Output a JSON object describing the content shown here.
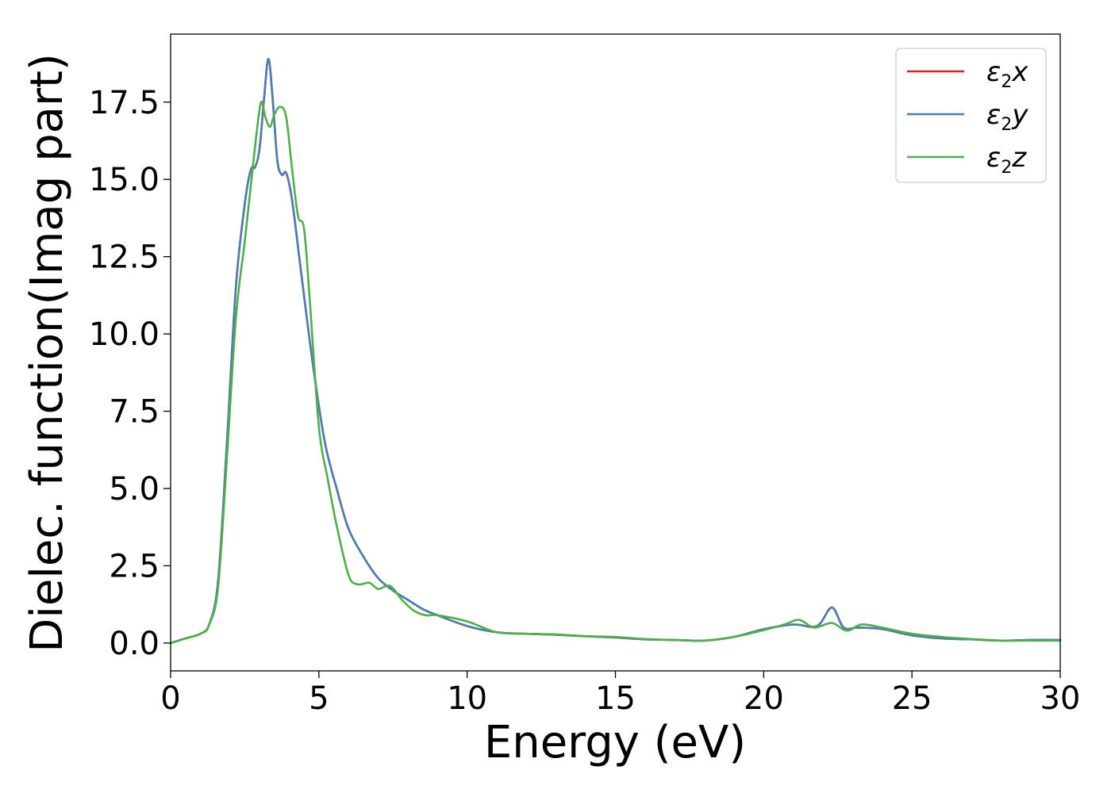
{
  "chart_data": {
    "type": "line",
    "xlabel": "Energy (eV)",
    "ylabel": "Dielec. function(Imag part)",
    "xlim": [
      0,
      30
    ],
    "ylim": [
      -0.9,
      19.7
    ],
    "xticks": [
      0,
      5,
      10,
      15,
      20,
      25,
      30
    ],
    "xtick_labels": [
      "0",
      "5",
      "10",
      "15",
      "20",
      "25",
      "30"
    ],
    "yticks": [
      0,
      2.5,
      5,
      7.5,
      10,
      12.5,
      15,
      17.5
    ],
    "ytick_labels": [
      "0.0",
      "2.5",
      "5.0",
      "7.5",
      "10.0",
      "12.5",
      "15.0",
      "17.5"
    ],
    "grid": false,
    "legend_position": "top-right",
    "series": [
      {
        "name": "ε2x",
        "legend_base": "ε",
        "legend_sub": "2",
        "legend_var": "x",
        "color": "#e41a1c",
        "x": [
          0,
          0.5,
          1.0,
          1.3,
          1.6,
          1.9,
          2.2,
          2.5,
          2.7,
          2.85,
          3.0,
          3.15,
          3.3,
          3.45,
          3.6,
          3.75,
          3.9,
          4.1,
          4.4,
          4.8,
          5.2,
          5.6,
          6.0,
          6.5,
          7.0,
          7.5,
          8.0,
          8.5,
          9.0,
          10.0,
          11.0,
          12.0,
          13.0,
          14.0,
          15.0,
          16.0,
          17.0,
          18.0,
          19.0,
          20.0,
          21.0,
          21.8,
          22.3,
          22.7,
          23.2,
          24.0,
          25.0,
          26.0,
          27.0,
          28.0,
          29.0,
          30.0
        ],
        "y": [
          0.0,
          0.15,
          0.3,
          0.6,
          2.0,
          6.5,
          11.5,
          14.2,
          15.3,
          15.4,
          16.0,
          17.6,
          18.9,
          17.5,
          15.6,
          15.15,
          15.2,
          14.3,
          12.0,
          9.0,
          6.5,
          5.0,
          3.7,
          2.8,
          2.1,
          1.7,
          1.4,
          1.1,
          0.9,
          0.55,
          0.35,
          0.3,
          0.27,
          0.22,
          0.18,
          0.12,
          0.1,
          0.08,
          0.2,
          0.45,
          0.6,
          0.55,
          1.15,
          0.5,
          0.5,
          0.45,
          0.25,
          0.15,
          0.12,
          0.08,
          0.1,
          0.1
        ]
      },
      {
        "name": "ε2y",
        "legend_base": "ε",
        "legend_sub": "2",
        "legend_var": "y",
        "color": "#4a7fb5",
        "x": [
          0,
          0.5,
          1.0,
          1.3,
          1.6,
          1.9,
          2.2,
          2.5,
          2.7,
          2.85,
          3.0,
          3.15,
          3.3,
          3.45,
          3.6,
          3.75,
          3.9,
          4.1,
          4.4,
          4.8,
          5.2,
          5.6,
          6.0,
          6.5,
          7.0,
          7.5,
          8.0,
          8.5,
          9.0,
          10.0,
          11.0,
          12.0,
          13.0,
          14.0,
          15.0,
          16.0,
          17.0,
          18.0,
          19.0,
          20.0,
          21.0,
          21.8,
          22.3,
          22.7,
          23.2,
          24.0,
          25.0,
          26.0,
          27.0,
          28.0,
          29.0,
          30.0
        ],
        "y": [
          0.0,
          0.15,
          0.3,
          0.6,
          2.0,
          6.5,
          11.5,
          14.2,
          15.3,
          15.4,
          16.0,
          17.6,
          18.9,
          17.5,
          15.6,
          15.15,
          15.2,
          14.3,
          12.0,
          9.0,
          6.5,
          5.0,
          3.7,
          2.8,
          2.1,
          1.7,
          1.4,
          1.1,
          0.9,
          0.55,
          0.35,
          0.3,
          0.27,
          0.22,
          0.18,
          0.12,
          0.1,
          0.08,
          0.2,
          0.45,
          0.6,
          0.55,
          1.15,
          0.5,
          0.5,
          0.45,
          0.25,
          0.15,
          0.12,
          0.08,
          0.1,
          0.1
        ]
      },
      {
        "name": "ε2z",
        "legend_base": "ε",
        "legend_sub": "2",
        "legend_var": "z",
        "color": "#4daf4a",
        "x": [
          0,
          0.5,
          1.0,
          1.3,
          1.6,
          1.9,
          2.2,
          2.5,
          2.75,
          2.9,
          3.05,
          3.2,
          3.35,
          3.5,
          3.7,
          3.9,
          4.1,
          4.3,
          4.5,
          4.7,
          5.0,
          5.3,
          5.6,
          6.0,
          6.3,
          6.7,
          7.0,
          7.4,
          7.8,
          8.2,
          8.6,
          9.0,
          10.0,
          11.0,
          12.0,
          13.0,
          14.0,
          15.0,
          16.0,
          17.0,
          18.0,
          19.0,
          20.0,
          20.7,
          21.2,
          21.7,
          22.3,
          22.8,
          23.3,
          24.0,
          25.0,
          26.0,
          27.0,
          28.0,
          29.0,
          30.0
        ],
        "y": [
          0.0,
          0.15,
          0.3,
          0.6,
          1.8,
          6.0,
          10.5,
          13.0,
          15.2,
          16.5,
          17.5,
          17.0,
          16.7,
          17.1,
          17.35,
          17.0,
          15.3,
          13.8,
          13.4,
          11.0,
          7.0,
          5.3,
          3.8,
          2.2,
          1.9,
          1.95,
          1.75,
          1.85,
          1.4,
          1.05,
          0.9,
          0.9,
          0.7,
          0.35,
          0.3,
          0.28,
          0.22,
          0.2,
          0.13,
          0.1,
          0.08,
          0.2,
          0.42,
          0.6,
          0.75,
          0.5,
          0.65,
          0.4,
          0.6,
          0.5,
          0.3,
          0.2,
          0.13,
          0.08,
          0.08,
          0.08
        ]
      }
    ]
  }
}
